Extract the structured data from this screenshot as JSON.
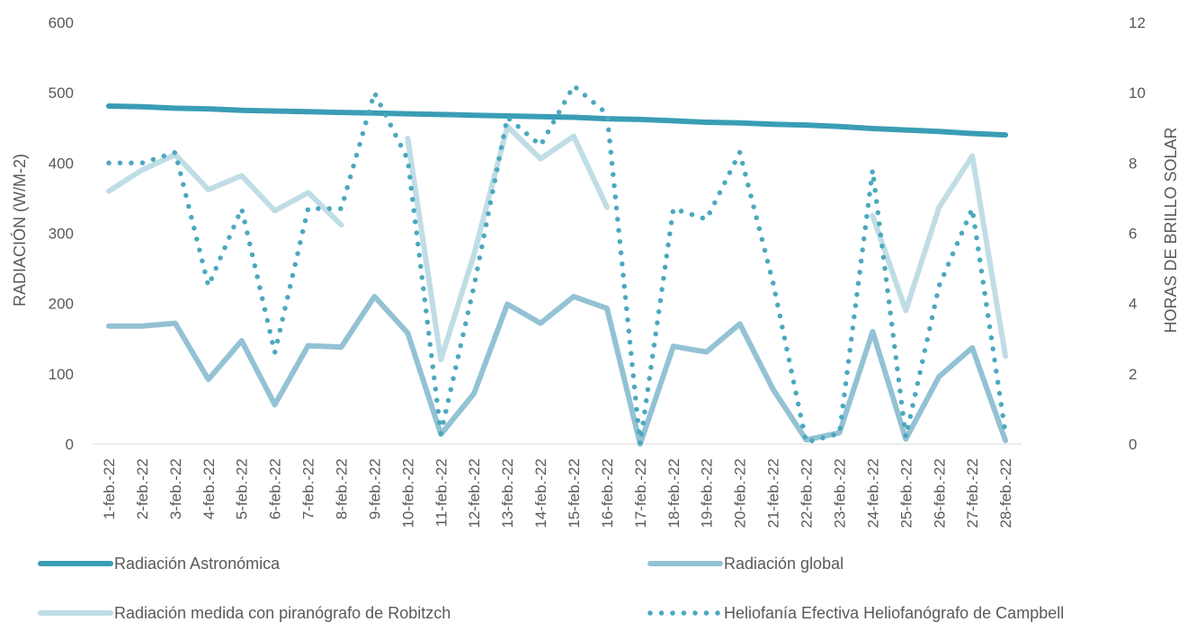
{
  "chart_data": {
    "type": "line",
    "title": "",
    "categories": [
      "1-feb.-22",
      "2-feb.-22",
      "3-feb.-22",
      "4-feb.-22",
      "5-feb.-22",
      "6-feb.-22",
      "7-feb.-22",
      "8-feb.-22",
      "9-feb.-22",
      "10-feb.-22",
      "11-feb.-22",
      "12-feb.-22",
      "13-feb.-22",
      "14-feb.-22",
      "15-feb.-22",
      "16-feb.-22",
      "17-feb.-22",
      "18-feb.-22",
      "19-feb.-22",
      "20-feb.-22",
      "21-feb.-22",
      "22-feb.-22",
      "23-feb.-22",
      "24-feb.-22",
      "25-feb.-22",
      "26-feb.-22",
      "27-feb.-22",
      "28-feb.-22"
    ],
    "y_left": {
      "label": "RADIACIÓN (W/M-2)",
      "min": 0,
      "max": 600,
      "ticks": [
        0,
        100,
        200,
        300,
        400,
        500,
        600
      ]
    },
    "y_right": {
      "label": "HORAS DE BRILLO SOLAR",
      "min": 0,
      "max": 12,
      "ticks": [
        0,
        2,
        4,
        6,
        8,
        10,
        12
      ]
    },
    "legend": {
      "position": "bottom"
    },
    "grid": false,
    "series": [
      {
        "name": "Radiación Astronómica",
        "axis": "left",
        "style": "solid-thick",
        "color": "#3a9db5",
        "values": [
          481,
          480,
          478,
          477,
          475,
          474,
          473,
          472,
          471,
          470,
          469,
          468,
          467,
          466,
          465,
          463,
          462,
          460,
          458,
          457,
          455,
          454,
          452,
          449,
          447,
          445,
          442,
          440
        ]
      },
      {
        "name": "Radiación global",
        "axis": "left",
        "style": "solid",
        "color": "#93c2d4",
        "values": [
          168,
          168,
          172,
          92,
          147,
          56,
          140,
          138,
          210,
          158,
          14,
          72,
          199,
          172,
          210,
          193,
          0,
          139,
          131,
          171,
          78,
          6,
          16,
          160,
          7,
          96,
          137,
          5
        ]
      },
      {
        "name": "Radiación medida con piranógrafo de Robitzch",
        "axis": "left",
        "style": "solid",
        "color": "#c0dde6",
        "values": [
          360,
          390,
          412,
          362,
          382,
          332,
          358,
          312,
          null,
          435,
          120,
          270,
          452,
          406,
          438,
          337,
          null,
          null,
          null,
          null,
          null,
          null,
          null,
          325,
          190,
          337,
          410,
          125
        ]
      },
      {
        "name": "Heliofanía Efectiva Heliofanógrafo de Campbell",
        "axis": "right",
        "style": "dotted",
        "color": "#4ba8bf",
        "values": [
          8.0,
          8.0,
          8.3,
          4.5,
          6.7,
          2.6,
          6.7,
          6.7,
          10.0,
          8.1,
          0.3,
          4.5,
          9.3,
          8.5,
          10.2,
          9.4,
          0,
          6.7,
          6.4,
          8.3,
          4.6,
          0.05,
          0.3,
          7.8,
          0.2,
          4.5,
          6.7,
          0.3
        ]
      }
    ]
  }
}
